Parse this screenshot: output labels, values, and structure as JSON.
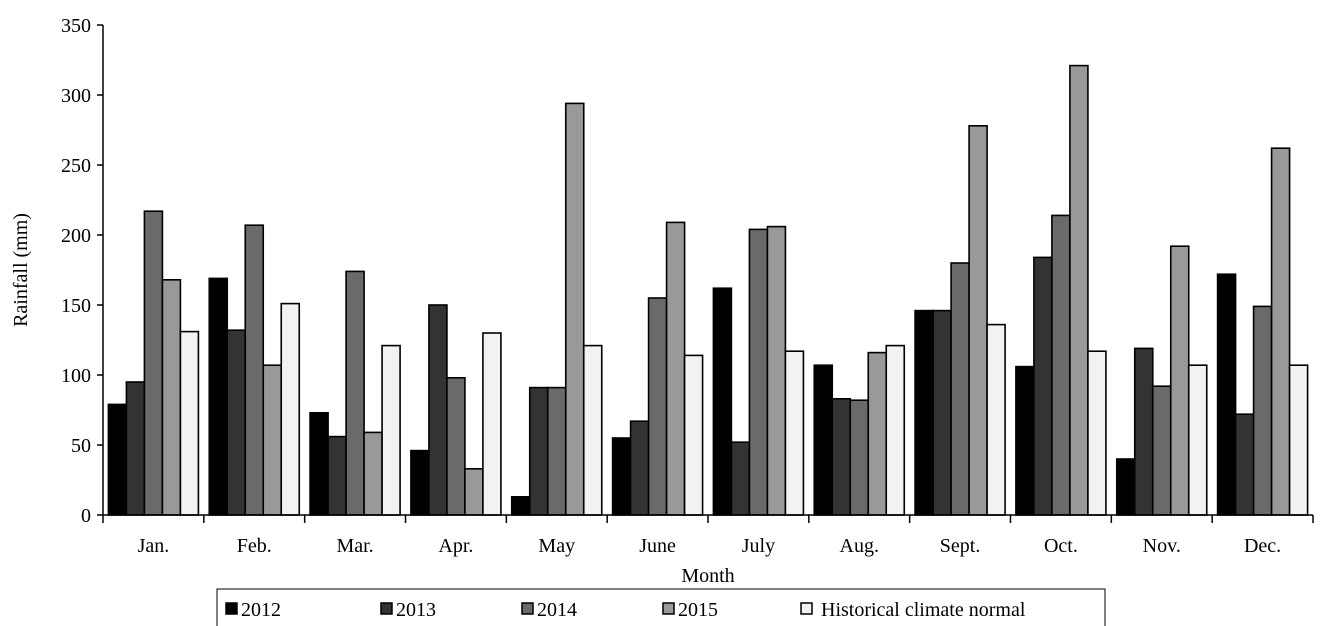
{
  "chart_data": {
    "type": "bar",
    "title": "",
    "xlabel": "Month",
    "ylabel": "Rainfall (mm)",
    "ylim": [
      0,
      350
    ],
    "yticks": [
      0,
      50,
      100,
      150,
      200,
      250,
      300,
      350
    ],
    "categories": [
      "Jan.",
      "Feb.",
      "Mar.",
      "Apr.",
      "May",
      "June",
      "July",
      "Aug.",
      "Sept.",
      "Oct.",
      "Nov.",
      "Dec."
    ],
    "series": [
      {
        "name": "2012",
        "color": "#000000",
        "values": [
          79,
          169,
          73,
          46,
          13,
          55,
          162,
          107,
          146,
          106,
          40,
          172
        ]
      },
      {
        "name": "2013",
        "color": "#333333",
        "values": [
          95,
          132,
          56,
          150,
          91,
          67,
          52,
          83,
          146,
          184,
          119,
          72
        ]
      },
      {
        "name": "2014",
        "color": "#6a6a6a",
        "values": [
          217,
          207,
          174,
          98,
          91,
          155,
          204,
          82,
          180,
          214,
          92,
          149
        ]
      },
      {
        "name": "2015",
        "color": "#999999",
        "values": [
          168,
          107,
          59,
          33,
          294,
          209,
          206,
          116,
          278,
          321,
          192,
          262
        ]
      },
      {
        "name": "Historical climate normal",
        "color": "#f2f2f2",
        "values": [
          131,
          151,
          121,
          130,
          121,
          114,
          117,
          121,
          136,
          117,
          107,
          107
        ]
      }
    ],
    "grid": false,
    "legend_position": "bottom"
  }
}
